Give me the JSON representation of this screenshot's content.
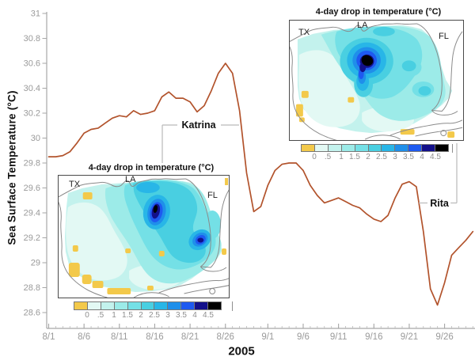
{
  "figure": {
    "y_axis": {
      "title": "Sea Surface Temperature (°C)",
      "tick_labels": [
        "31",
        "30.8",
        "30.6",
        "30.4",
        "30.2",
        "30",
        "29.8",
        "29.6",
        "29.4",
        "29.2",
        "29",
        "28.8",
        "28.6"
      ]
    },
    "x_axis": {
      "title": "2005",
      "tick_labels": [
        "8/1",
        "8/6",
        "8/11",
        "8/16",
        "8/21",
        "8/26",
        "9/1",
        "9/6",
        "9/11",
        "9/16",
        "9/21",
        "9/26"
      ],
      "tick_days": [
        0,
        5,
        10,
        15,
        20,
        25,
        31,
        36,
        41,
        46,
        51,
        56
      ]
    },
    "annotations": {
      "katrina": "Katrina",
      "rita": "Rita"
    },
    "line_color": "#b2532c"
  },
  "insets": {
    "katrina": {
      "title": "4-day drop in temperature (°C)",
      "labels": {
        "tx": "TX",
        "la": "LA",
        "fl": "FL"
      },
      "colorbar": {
        "tick_labels": [
          "0",
          ".5",
          "1",
          "1.5",
          "2",
          "2.5",
          "3",
          "3.5",
          "4",
          "4.5"
        ],
        "colors": [
          "#f3c94a",
          "#e3f9f4",
          "#c3f2ed",
          "#9cebe8",
          "#74e0e6",
          "#49cfe1",
          "#28b6e7",
          "#1f8fea",
          "#1e5af0",
          "#13108a",
          "#000000"
        ]
      }
    },
    "rita": {
      "title": "4-day drop in temperature (°C)",
      "labels": {
        "tx": "TX",
        "la": "LA",
        "fl": "FL"
      },
      "colorbar": {
        "tick_labels": [
          "0",
          ".5",
          "1",
          "1.5",
          "2",
          "2.5",
          "3",
          "3.5",
          "4",
          "4.5"
        ],
        "colors": [
          "#f3c94a",
          "#e3f9f4",
          "#c3f2ed",
          "#9cebe8",
          "#74e0e6",
          "#49cfe1",
          "#28b6e7",
          "#1f8fea",
          "#1e5af0",
          "#13108a",
          "#000000"
        ]
      }
    }
  },
  "chart_data": {
    "type": "line",
    "title": "Sea surface temperature in the Gulf of Mexico, 2005",
    "xlabel": "2005",
    "ylabel": "Sea Surface Temperature (°C)",
    "ylim": [
      28.6,
      31
    ],
    "x_tick_labels": [
      "8/1",
      "8/6",
      "8/11",
      "8/16",
      "8/21",
      "8/26",
      "9/1",
      "9/6",
      "9/11",
      "9/16",
      "9/21",
      "9/26"
    ],
    "x": [
      "8/1",
      "8/2",
      "8/3",
      "8/4",
      "8/5",
      "8/6",
      "8/7",
      "8/8",
      "8/9",
      "8/10",
      "8/11",
      "8/12",
      "8/13",
      "8/14",
      "8/15",
      "8/16",
      "8/17",
      "8/18",
      "8/19",
      "8/20",
      "8/21",
      "8/22",
      "8/23",
      "8/24",
      "8/25",
      "8/26",
      "8/27",
      "8/28",
      "8/29",
      "8/30",
      "8/31",
      "9/1",
      "9/2",
      "9/3",
      "9/4",
      "9/5",
      "9/6",
      "9/7",
      "9/8",
      "9/9",
      "9/10",
      "9/11",
      "9/12",
      "9/13",
      "9/14",
      "9/15",
      "9/16",
      "9/17",
      "9/18",
      "9/19",
      "9/20",
      "9/21",
      "9/22",
      "9/23",
      "9/24",
      "9/25",
      "9/26",
      "9/27",
      "9/28",
      "9/29",
      "9/30"
    ],
    "y": [
      29.85,
      29.85,
      29.86,
      29.89,
      29.96,
      30.04,
      30.07,
      30.08,
      30.12,
      30.16,
      30.18,
      30.17,
      30.22,
      30.19,
      30.2,
      30.22,
      30.33,
      30.37,
      30.32,
      30.32,
      30.29,
      30.21,
      30.26,
      30.38,
      30.52,
      30.6,
      30.52,
      30.22,
      29.72,
      29.41,
      29.45,
      29.62,
      29.74,
      29.79,
      29.8,
      29.8,
      29.74,
      29.62,
      29.54,
      29.48,
      29.5,
      29.52,
      29.49,
      29.46,
      29.44,
      29.39,
      29.35,
      29.33,
      29.38,
      29.52,
      29.63,
      29.65,
      29.61,
      29.25,
      28.79,
      28.66,
      28.84,
      29.06,
      29.12,
      29.18,
      29.25
    ],
    "annotations": [
      {
        "label": "Katrina",
        "points_to": "sharp SST drop after the ~30.6 °C peak of 8/26 (falls to ~29.4 °C by 8/30)"
      },
      {
        "label": "Rita",
        "points_to": "sharp SST drop after 9/22 (falls to ~28.66 °C by 9/25)"
      }
    ],
    "insets": [
      {
        "type": "heatmap",
        "hurricane": "Katrina",
        "title": "4-day drop in temperature (°C)",
        "region_labels": [
          "TX",
          "LA",
          "FL"
        ],
        "colorbar_ticks": [
          0,
          0.5,
          1,
          1.5,
          2,
          2.5,
          3,
          3.5,
          4,
          4.5
        ],
        "description": "Two cores of 4–4.5+ °C cooling in the north-central and east-central Gulf of Mexico; background cooling 0.5–2 °C; scattered slight warming (yellow) near coasts."
      },
      {
        "type": "heatmap",
        "hurricane": "Rita",
        "title": "4-day drop in temperature (°C)",
        "region_labels": [
          "TX",
          "LA",
          "FL"
        ],
        "colorbar_ticks": [
          0,
          0.5,
          1,
          1.5,
          2,
          2.5,
          3,
          3.5,
          4,
          4.5
        ],
        "description": "Single intense core of >4.5 °C cooling in the central Gulf of Mexico; background cooling 0.5–2 °C; scattered slight warming (yellow) near edges."
      }
    ]
  }
}
